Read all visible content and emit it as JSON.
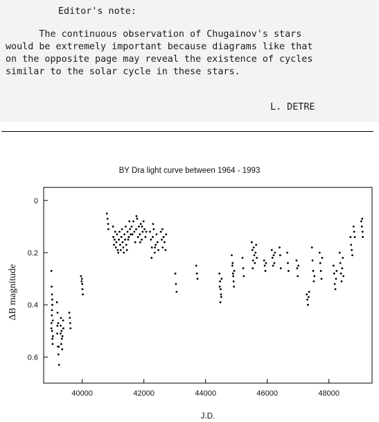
{
  "note": {
    "heading": "Editor's note:",
    "lines": [
      "      The continuous observation of Chugainov's stars",
      "would be extremely important because diagrams like that",
      "on the opposite page may reveal the existence of cycles",
      "similar to the solar cycle in these stars."
    ],
    "signature": "L. DETRE"
  },
  "chart_data": {
    "type": "scatter",
    "title": "BY Dra light curve between 1964 - 1993",
    "xlabel": "J.D.",
    "ylabel": "ΔB magnitude",
    "xlim": [
      38750,
      49400
    ],
    "ylim": [
      0.7,
      -0.05
    ],
    "y_inverted": true,
    "xticks": [
      40000,
      42000,
      44000,
      46000,
      48000
    ],
    "yticks": [
      0,
      0.2,
      0.4,
      0.6
    ],
    "xtick_labels": [
      "40000",
      "42000",
      "44000",
      "46000",
      "48000"
    ],
    "ytick_labels": [
      "0",
      "0.2",
      "0.4",
      "0.6"
    ],
    "grid": false,
    "legend": "none",
    "marker_color": "#000000",
    "series": [
      {
        "points": [
          [
            39000,
            0.27
          ],
          [
            39010,
            0.33
          ],
          [
            39020,
            0.36
          ],
          [
            39030,
            0.4
          ],
          [
            39015,
            0.44
          ],
          [
            39005,
            0.47
          ],
          [
            39025,
            0.5
          ],
          [
            39035,
            0.53
          ],
          [
            39040,
            0.55
          ],
          [
            39050,
            0.52
          ],
          [
            39000,
            0.49
          ],
          [
            39020,
            0.42
          ],
          [
            39030,
            0.38
          ],
          [
            39045,
            0.46
          ],
          [
            39180,
            0.39
          ],
          [
            39200,
            0.43
          ],
          [
            39220,
            0.47
          ],
          [
            39190,
            0.51
          ],
          [
            39210,
            0.56
          ],
          [
            39230,
            0.59
          ],
          [
            39250,
            0.63
          ],
          [
            39240,
            0.56
          ],
          [
            39195,
            0.48
          ],
          [
            39300,
            0.48
          ],
          [
            39330,
            0.5
          ],
          [
            39360,
            0.52
          ],
          [
            39390,
            0.49
          ],
          [
            39340,
            0.53
          ],
          [
            39320,
            0.55
          ],
          [
            39300,
            0.51
          ],
          [
            39380,
            0.46
          ],
          [
            39350,
            0.57
          ],
          [
            39310,
            0.45
          ],
          [
            39580,
            0.43
          ],
          [
            39600,
            0.45
          ],
          [
            39610,
            0.47
          ],
          [
            39620,
            0.49
          ],
          [
            39960,
            0.29
          ],
          [
            39980,
            0.31
          ],
          [
            40000,
            0.32
          ],
          [
            40010,
            0.34
          ],
          [
            40020,
            0.36
          ],
          [
            39990,
            0.3
          ],
          [
            40800,
            0.05
          ],
          [
            40820,
            0.07
          ],
          [
            40840,
            0.09
          ],
          [
            40850,
            0.11
          ],
          [
            41000,
            0.1
          ],
          [
            41010,
            0.14
          ],
          [
            41030,
            0.17
          ],
          [
            41050,
            0.15
          ],
          [
            41070,
            0.12
          ],
          [
            41090,
            0.18
          ],
          [
            41110,
            0.16
          ],
          [
            41130,
            0.13
          ],
          [
            41150,
            0.19
          ],
          [
            41170,
            0.2
          ],
          [
            41190,
            0.15
          ],
          [
            41210,
            0.12
          ],
          [
            41230,
            0.17
          ],
          [
            41250,
            0.19
          ],
          [
            41270,
            0.14
          ],
          [
            41290,
            0.11
          ],
          [
            41310,
            0.16
          ],
          [
            41330,
            0.18
          ],
          [
            41350,
            0.2
          ],
          [
            41370,
            0.13
          ],
          [
            41390,
            0.15
          ],
          [
            41410,
            0.1
          ],
          [
            41430,
            0.17
          ],
          [
            41450,
            0.19
          ],
          [
            41470,
            0.12
          ],
          [
            41490,
            0.15
          ],
          [
            41510,
            0.14
          ],
          [
            41530,
            0.08
          ],
          [
            41550,
            0.11
          ],
          [
            41570,
            0.13
          ],
          [
            41600,
            0.1
          ],
          [
            41630,
            0.13
          ],
          [
            41660,
            0.08
          ],
          [
            41690,
            0.12
          ],
          [
            41720,
            0.16
          ],
          [
            41750,
            0.11
          ],
          [
            41780,
            0.07
          ],
          [
            41810,
            0.14
          ],
          [
            41840,
            0.1
          ],
          [
            41870,
            0.13
          ],
          [
            41900,
            0.09
          ],
          [
            41930,
            0.15
          ],
          [
            41960,
            0.12
          ],
          [
            41990,
            0.08
          ],
          [
            42020,
            0.11
          ],
          [
            42050,
            0.14
          ],
          [
            42080,
            0.12
          ],
          [
            41760,
            0.06
          ],
          [
            41880,
            0.16
          ],
          [
            41940,
            0.1
          ],
          [
            42200,
            0.12
          ],
          [
            42230,
            0.15
          ],
          [
            42260,
            0.18
          ],
          [
            42290,
            0.14
          ],
          [
            42320,
            0.11
          ],
          [
            42350,
            0.2
          ],
          [
            42380,
            0.17
          ],
          [
            42410,
            0.13
          ],
          [
            42440,
            0.16
          ],
          [
            42470,
            0.19
          ],
          [
            42250,
            0.22
          ],
          [
            42300,
            0.09
          ],
          [
            42360,
            0.18
          ],
          [
            42550,
            0.12
          ],
          [
            42580,
            0.15
          ],
          [
            42610,
            0.18
          ],
          [
            42640,
            0.14
          ],
          [
            42670,
            0.16
          ],
          [
            42700,
            0.19
          ],
          [
            42720,
            0.13
          ],
          [
            42600,
            0.11
          ],
          [
            43020,
            0.28
          ],
          [
            43040,
            0.32
          ],
          [
            43060,
            0.35
          ],
          [
            43700,
            0.25
          ],
          [
            43720,
            0.28
          ],
          [
            43740,
            0.3
          ],
          [
            44450,
            0.28
          ],
          [
            44470,
            0.31
          ],
          [
            44490,
            0.34
          ],
          [
            44510,
            0.37
          ],
          [
            44480,
            0.39
          ],
          [
            44460,
            0.33
          ],
          [
            44500,
            0.36
          ],
          [
            44520,
            0.3
          ],
          [
            44850,
            0.21
          ],
          [
            44870,
            0.25
          ],
          [
            44890,
            0.28
          ],
          [
            44910,
            0.31
          ],
          [
            44930,
            0.27
          ],
          [
            44880,
            0.24
          ],
          [
            44900,
            0.29
          ],
          [
            44920,
            0.33
          ],
          [
            45200,
            0.22
          ],
          [
            45220,
            0.26
          ],
          [
            45240,
            0.29
          ],
          [
            45500,
            0.16
          ],
          [
            45520,
            0.19
          ],
          [
            45540,
            0.23
          ],
          [
            45560,
            0.18
          ],
          [
            45580,
            0.21
          ],
          [
            45600,
            0.24
          ],
          [
            45620,
            0.2
          ],
          [
            45640,
            0.17
          ],
          [
            45660,
            0.22
          ],
          [
            45530,
            0.26
          ],
          [
            45900,
            0.23
          ],
          [
            45920,
            0.25
          ],
          [
            45940,
            0.27
          ],
          [
            45960,
            0.24
          ],
          [
            46150,
            0.19
          ],
          [
            46170,
            0.22
          ],
          [
            46190,
            0.25
          ],
          [
            46210,
            0.21
          ],
          [
            46230,
            0.24
          ],
          [
            46250,
            0.2
          ],
          [
            46400,
            0.18
          ],
          [
            46420,
            0.21
          ],
          [
            46440,
            0.26
          ],
          [
            46650,
            0.2
          ],
          [
            46670,
            0.24
          ],
          [
            46690,
            0.27
          ],
          [
            46950,
            0.23
          ],
          [
            46970,
            0.26
          ],
          [
            46990,
            0.29
          ],
          [
            47010,
            0.25
          ],
          [
            47280,
            0.36
          ],
          [
            47300,
            0.38
          ],
          [
            47320,
            0.4
          ],
          [
            47340,
            0.37
          ],
          [
            47360,
            0.35
          ],
          [
            47450,
            0.18
          ],
          [
            47470,
            0.23
          ],
          [
            47490,
            0.27
          ],
          [
            47510,
            0.31
          ],
          [
            47530,
            0.29
          ],
          [
            47700,
            0.2
          ],
          [
            47720,
            0.24
          ],
          [
            47740,
            0.27
          ],
          [
            47760,
            0.3
          ],
          [
            47780,
            0.22
          ],
          [
            48150,
            0.25
          ],
          [
            48170,
            0.28
          ],
          [
            48190,
            0.32
          ],
          [
            48210,
            0.34
          ],
          [
            48230,
            0.3
          ],
          [
            48250,
            0.27
          ],
          [
            48350,
            0.2
          ],
          [
            48370,
            0.24
          ],
          [
            48390,
            0.28
          ],
          [
            48410,
            0.31
          ],
          [
            48430,
            0.26
          ],
          [
            48450,
            0.22
          ],
          [
            48470,
            0.29
          ],
          [
            48700,
            0.14
          ],
          [
            48720,
            0.17
          ],
          [
            48740,
            0.19
          ],
          [
            48760,
            0.21
          ],
          [
            48800,
            0.1
          ],
          [
            48820,
            0.12
          ],
          [
            48840,
            0.14
          ],
          [
            49050,
            0.08
          ],
          [
            49070,
            0.1
          ],
          [
            49090,
            0.12
          ],
          [
            49100,
            0.14
          ],
          [
            49080,
            0.07
          ]
        ]
      }
    ]
  }
}
